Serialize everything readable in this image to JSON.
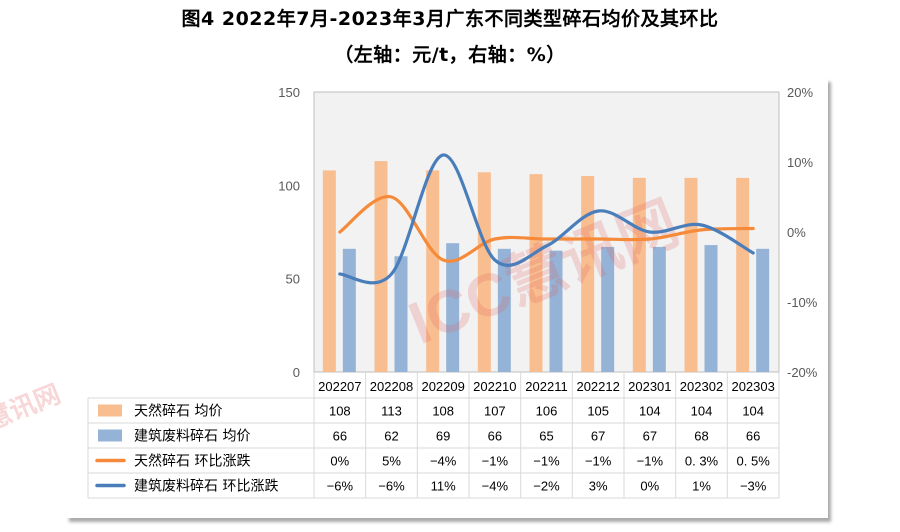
{
  "title": "图4 2022年7月-2023年3月广东不同类型碎石均价及其环比",
  "subtitle": "（左轴：元/t，右轴：%）",
  "watermark": "ICC慧讯网",
  "chart_data": {
    "type": "bar",
    "categories": [
      "202207",
      "202208",
      "202209",
      "202210",
      "202211",
      "202212",
      "202301",
      "202302",
      "202303"
    ],
    "left_axis": {
      "range": [
        0,
        150
      ],
      "ticks": [
        "0",
        "50",
        "100",
        "150"
      ],
      "unit": "元/t"
    },
    "right_axis": {
      "range": [
        -20,
        20
      ],
      "ticks": [
        "-20%",
        "-10%",
        "0%",
        "10%",
        "20%"
      ],
      "unit": "%"
    },
    "series": [
      {
        "name": "天然碎石 均价",
        "type": "bar",
        "axis": "left",
        "color": "#F9BE8F",
        "values": [
          108,
          113,
          108,
          107,
          106,
          105,
          104,
          104,
          104
        ],
        "labels": [
          "108",
          "113",
          "108",
          "107",
          "106",
          "105",
          "104",
          "104",
          "104"
        ]
      },
      {
        "name": "建筑废料碎石 均价",
        "type": "bar",
        "axis": "left",
        "color": "#95B3D7",
        "values": [
          66,
          62,
          69,
          66,
          65,
          67,
          67,
          68,
          66
        ],
        "labels": [
          "66",
          "62",
          "69",
          "66",
          "65",
          "67",
          "67",
          "68",
          "66"
        ]
      },
      {
        "name": "天然碎石 环比涨跌",
        "type": "line",
        "axis": "right",
        "color": "#F58B3A",
        "values": [
          0,
          5,
          -4,
          -1,
          -1,
          -1,
          -1,
          0.3,
          0.5
        ],
        "labels": [
          "0%",
          "5%",
          "−4%",
          "−1%",
          "−1%",
          "−1%",
          "−1%",
          "0. 3%",
          "0. 5%"
        ]
      },
      {
        "name": "建筑废料碎石 环比涨跌",
        "type": "line",
        "axis": "right",
        "color": "#4A7EBB",
        "values": [
          -6,
          -6,
          11,
          -4,
          -2,
          3,
          0,
          1,
          -3
        ],
        "labels": [
          "−6%",
          "−6%",
          "11%",
          "−4%",
          "−2%",
          "3%",
          "0%",
          "1%",
          "−3%"
        ]
      }
    ],
    "legend": "data-table-bottom"
  }
}
